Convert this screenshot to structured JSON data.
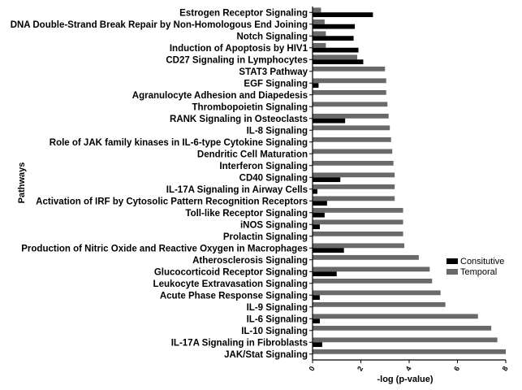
{
  "chart_data": {
    "type": "bar",
    "orientation": "horizontal",
    "categories": [
      "Estrogen Receptor Signaling",
      "DNA Double-Strand Break Repair by Non-Homologous End Joining",
      "Notch Signaling",
      "Induction of Apoptosis by HIV1",
      "CD27 Signaling in Lymphocytes",
      "STAT3 Pathway",
      "EGF Signaling",
      "Agranulocyte Adhesion and Diapedesis",
      "Thrombopoietin Signaling",
      "RANK Signaling in Osteoclasts",
      "IL-8 Signaling",
      "Role of JAK family kinases in IL-6-type Cytokine Signaling",
      "Dendritic Cell Maturation",
      "Interferon Signaling",
      "CD40 Signaling",
      "IL-17A Signaling in Airway Cells",
      "Activation of IRF by Cytosolic Pattern Recognition Receptors",
      "Toll-like Receptor Signaling",
      "iNOS Signaling",
      "Prolactin Signaling",
      "Production of Nitric Oxide and Reactive Oxygen in Macrophages",
      "Atherosclerosis Signaling",
      "Glucocorticoid Receptor Signaling",
      "Leukocyte Extravasation Signaling",
      "Acute Phase Response Signaling",
      "IL-9 Signaling",
      "IL-6 Signaling",
      "IL-10 Signaling",
      "IL-17A Signaling in Fibroblasts",
      "JAK/Stat Signaling"
    ],
    "series": [
      {
        "name": "Consitutive",
        "color": "#000000",
        "values": [
          2.5,
          1.75,
          1.7,
          1.9,
          2.1,
          0,
          0.25,
          0,
          0,
          1.35,
          0,
          0,
          0,
          0,
          1.15,
          0.2,
          0.6,
          0.5,
          0.3,
          0,
          1.3,
          0,
          1.0,
          0,
          0.3,
          0,
          0.3,
          0,
          0.4,
          0
        ]
      },
      {
        "name": "Temporal",
        "color": "#696969",
        "values": [
          0.35,
          0.5,
          0.55,
          0.55,
          1.85,
          3.0,
          3.05,
          3.05,
          3.1,
          3.15,
          3.2,
          3.25,
          3.3,
          3.35,
          3.4,
          3.4,
          3.4,
          3.75,
          3.75,
          3.75,
          3.8,
          4.4,
          4.85,
          4.95,
          5.3,
          5.5,
          6.85,
          7.4,
          7.65,
          8.0
        ]
      }
    ],
    "xlabel": "-log (p-value)",
    "ylabel": "Pathways",
    "xlim": [
      0,
      8
    ],
    "xticks": [
      "0",
      "2",
      "4",
      "6",
      "8"
    ],
    "legend_position": "right",
    "grid": false
  }
}
